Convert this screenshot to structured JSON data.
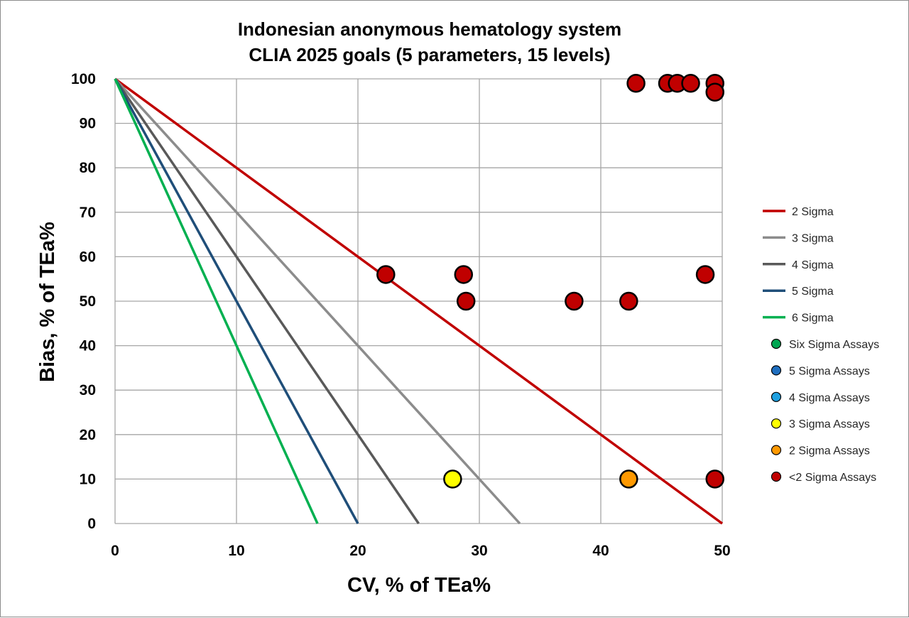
{
  "chart_data": {
    "type": "scatter",
    "title": "Indonesian anonymous hematology system",
    "subtitle": "CLIA 2025 goals (5 parameters, 15 levels)",
    "xlabel": "CV, % of TEa%",
    "ylabel": "Bias, % of TEa%",
    "xlim": [
      0,
      50
    ],
    "ylim": [
      0,
      100
    ],
    "xticks": [
      "0",
      "10",
      "20",
      "30",
      "40",
      "50"
    ],
    "yticks": [
      "0",
      "10",
      "20",
      "30",
      "40",
      "50",
      "60",
      "70",
      "80",
      "90",
      "100"
    ],
    "grid": true,
    "legend_position": "right",
    "lines": [
      {
        "name": "2 Sigma",
        "color": "#c00000",
        "points": [
          [
            0,
            100
          ],
          [
            50,
            0
          ]
        ]
      },
      {
        "name": "3 Sigma",
        "color": "#8c8c8c",
        "points": [
          [
            0,
            100
          ],
          [
            33.33,
            0
          ]
        ]
      },
      {
        "name": "4 Sigma",
        "color": "#595959",
        "points": [
          [
            0,
            100
          ],
          [
            25,
            0
          ]
        ]
      },
      {
        "name": "5 Sigma",
        "color": "#1f4e79",
        "points": [
          [
            0,
            100
          ],
          [
            20,
            0
          ]
        ]
      },
      {
        "name": "6 Sigma",
        "color": "#00b050",
        "points": [
          [
            0,
            100
          ],
          [
            16.67,
            0
          ]
        ]
      }
    ],
    "series": [
      {
        "name": "Six Sigma Assays",
        "color": "#00a651",
        "points": []
      },
      {
        "name": "5 Sigma Assays",
        "color": "#1f6fbf",
        "points": []
      },
      {
        "name": "4 Sigma Assays",
        "color": "#1ea0e0",
        "points": []
      },
      {
        "name": "3 Sigma Assays",
        "color": "#ffff00",
        "points": [
          [
            27.8,
            10
          ]
        ]
      },
      {
        "name": "2 Sigma Assays",
        "color": "#ff9900",
        "points": [
          [
            42.3,
            10
          ]
        ]
      },
      {
        "name": "<2 Sigma Assays",
        "color": "#c00000",
        "points": [
          [
            42.9,
            99
          ],
          [
            45.5,
            99
          ],
          [
            46.3,
            99
          ],
          [
            47.4,
            99
          ],
          [
            49.4,
            99
          ],
          [
            49.4,
            97
          ],
          [
            22.3,
            56
          ],
          [
            28.7,
            56
          ],
          [
            48.6,
            56
          ],
          [
            28.9,
            50
          ],
          [
            37.8,
            50
          ],
          [
            42.3,
            50
          ],
          [
            49.4,
            10
          ]
        ]
      }
    ]
  }
}
